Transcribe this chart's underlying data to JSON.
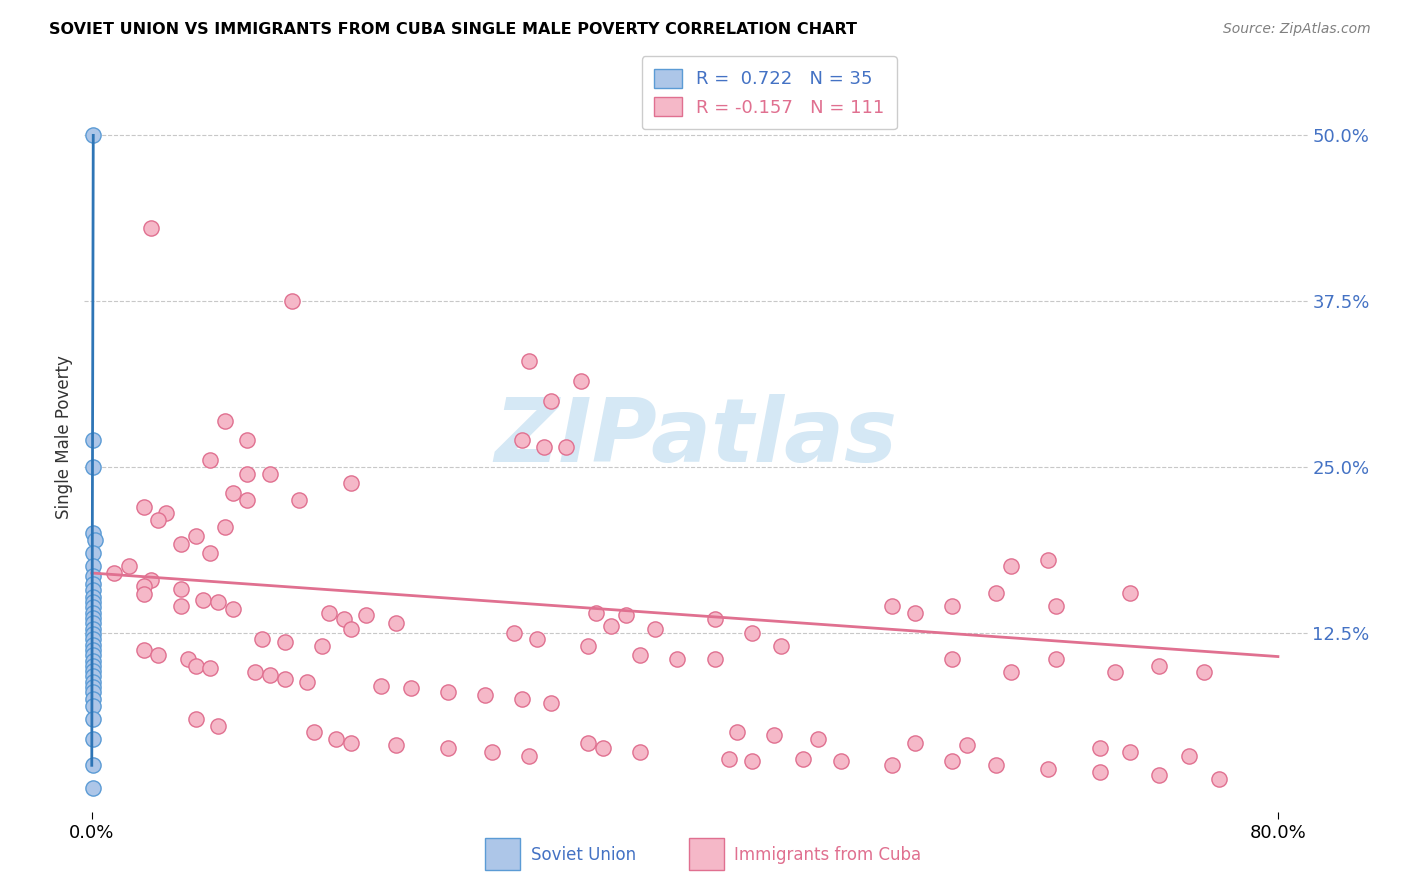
{
  "title": "SOVIET UNION VS IMMIGRANTS FROM CUBA SINGLE MALE POVERTY CORRELATION CHART",
  "source": "Source: ZipAtlas.com",
  "ylabel": "Single Male Poverty",
  "ytick_labels": [
    "50.0%",
    "37.5%",
    "25.0%",
    "12.5%"
  ],
  "ytick_values": [
    0.5,
    0.375,
    0.25,
    0.125
  ],
  "xlim": [
    -0.005,
    0.82
  ],
  "ylim": [
    -0.01,
    0.555
  ],
  "soviet_color": "#adc6e8",
  "soviet_edge_color": "#5b9bd5",
  "cuba_color": "#f5b8c8",
  "cuba_edge_color": "#e07090",
  "soviet_line_color": "#2e75b6",
  "cuba_line_color": "#e07090",
  "background_color": "#ffffff",
  "grid_color": "#c8c8c8",
  "watermark_color": "#d5e8f5",
  "title_color": "#000000",
  "source_color": "#808080",
  "right_tick_color": "#4472c4",
  "legend_text_color_1": "#4472c4",
  "legend_text_color_2": "#e07090",
  "soviet_points": [
    [
      0.001,
      0.5
    ],
    [
      0.001,
      0.27
    ],
    [
      0.001,
      0.25
    ],
    [
      0.001,
      0.2
    ],
    [
      0.002,
      0.195
    ],
    [
      0.001,
      0.185
    ],
    [
      0.001,
      0.175
    ],
    [
      0.001,
      0.168
    ],
    [
      0.001,
      0.162
    ],
    [
      0.001,
      0.157
    ],
    [
      0.001,
      0.152
    ],
    [
      0.001,
      0.148
    ],
    [
      0.001,
      0.144
    ],
    [
      0.001,
      0.14
    ],
    [
      0.001,
      0.136
    ],
    [
      0.001,
      0.132
    ],
    [
      0.001,
      0.128
    ],
    [
      0.001,
      0.124
    ],
    [
      0.001,
      0.12
    ],
    [
      0.001,
      0.116
    ],
    [
      0.001,
      0.112
    ],
    [
      0.001,
      0.108
    ],
    [
      0.001,
      0.104
    ],
    [
      0.001,
      0.1
    ],
    [
      0.001,
      0.096
    ],
    [
      0.001,
      0.092
    ],
    [
      0.001,
      0.088
    ],
    [
      0.001,
      0.084
    ],
    [
      0.001,
      0.08
    ],
    [
      0.001,
      0.075
    ],
    [
      0.001,
      0.07
    ],
    [
      0.001,
      0.06
    ],
    [
      0.001,
      0.045
    ],
    [
      0.001,
      0.025
    ],
    [
      0.001,
      0.008
    ]
  ],
  "cuba_points": [
    [
      0.04,
      0.43
    ],
    [
      0.135,
      0.375
    ],
    [
      0.295,
      0.33
    ],
    [
      0.33,
      0.315
    ],
    [
      0.31,
      0.3
    ],
    [
      0.09,
      0.285
    ],
    [
      0.105,
      0.27
    ],
    [
      0.29,
      0.27
    ],
    [
      0.32,
      0.265
    ],
    [
      0.305,
      0.265
    ],
    [
      0.08,
      0.255
    ],
    [
      0.105,
      0.245
    ],
    [
      0.12,
      0.245
    ],
    [
      0.175,
      0.238
    ],
    [
      0.095,
      0.23
    ],
    [
      0.105,
      0.225
    ],
    [
      0.14,
      0.225
    ],
    [
      0.035,
      0.22
    ],
    [
      0.05,
      0.215
    ],
    [
      0.045,
      0.21
    ],
    [
      0.09,
      0.205
    ],
    [
      0.07,
      0.198
    ],
    [
      0.06,
      0.192
    ],
    [
      0.08,
      0.185
    ],
    [
      0.025,
      0.175
    ],
    [
      0.015,
      0.17
    ],
    [
      0.04,
      0.165
    ],
    [
      0.035,
      0.16
    ],
    [
      0.06,
      0.158
    ],
    [
      0.035,
      0.154
    ],
    [
      0.075,
      0.15
    ],
    [
      0.085,
      0.148
    ],
    [
      0.06,
      0.145
    ],
    [
      0.095,
      0.143
    ],
    [
      0.16,
      0.14
    ],
    [
      0.185,
      0.138
    ],
    [
      0.17,
      0.135
    ],
    [
      0.205,
      0.132
    ],
    [
      0.175,
      0.128
    ],
    [
      0.285,
      0.125
    ],
    [
      0.3,
      0.12
    ],
    [
      0.34,
      0.14
    ],
    [
      0.36,
      0.138
    ],
    [
      0.35,
      0.13
    ],
    [
      0.38,
      0.128
    ],
    [
      0.42,
      0.135
    ],
    [
      0.445,
      0.125
    ],
    [
      0.115,
      0.12
    ],
    [
      0.13,
      0.118
    ],
    [
      0.155,
      0.115
    ],
    [
      0.035,
      0.112
    ],
    [
      0.045,
      0.108
    ],
    [
      0.065,
      0.105
    ],
    [
      0.07,
      0.1
    ],
    [
      0.08,
      0.098
    ],
    [
      0.11,
      0.095
    ],
    [
      0.12,
      0.093
    ],
    [
      0.13,
      0.09
    ],
    [
      0.145,
      0.088
    ],
    [
      0.195,
      0.085
    ],
    [
      0.215,
      0.083
    ],
    [
      0.24,
      0.08
    ],
    [
      0.265,
      0.078
    ],
    [
      0.29,
      0.075
    ],
    [
      0.31,
      0.072
    ],
    [
      0.335,
      0.115
    ],
    [
      0.37,
      0.108
    ],
    [
      0.395,
      0.105
    ],
    [
      0.42,
      0.105
    ],
    [
      0.465,
      0.115
    ],
    [
      0.54,
      0.145
    ],
    [
      0.555,
      0.14
    ],
    [
      0.58,
      0.145
    ],
    [
      0.61,
      0.155
    ],
    [
      0.62,
      0.175
    ],
    [
      0.645,
      0.18
    ],
    [
      0.65,
      0.145
    ],
    [
      0.7,
      0.155
    ],
    [
      0.58,
      0.105
    ],
    [
      0.62,
      0.095
    ],
    [
      0.65,
      0.105
    ],
    [
      0.69,
      0.095
    ],
    [
      0.72,
      0.1
    ],
    [
      0.75,
      0.095
    ],
    [
      0.07,
      0.06
    ],
    [
      0.085,
      0.055
    ],
    [
      0.15,
      0.05
    ],
    [
      0.165,
      0.045
    ],
    [
      0.175,
      0.042
    ],
    [
      0.205,
      0.04
    ],
    [
      0.24,
      0.038
    ],
    [
      0.27,
      0.035
    ],
    [
      0.295,
      0.032
    ],
    [
      0.335,
      0.042
    ],
    [
      0.345,
      0.038
    ],
    [
      0.37,
      0.035
    ],
    [
      0.43,
      0.03
    ],
    [
      0.445,
      0.028
    ],
    [
      0.48,
      0.03
    ],
    [
      0.505,
      0.028
    ],
    [
      0.54,
      0.025
    ],
    [
      0.58,
      0.028
    ],
    [
      0.61,
      0.025
    ],
    [
      0.645,
      0.022
    ],
    [
      0.68,
      0.02
    ],
    [
      0.72,
      0.018
    ],
    [
      0.76,
      0.015
    ],
    [
      0.435,
      0.05
    ],
    [
      0.46,
      0.048
    ],
    [
      0.49,
      0.045
    ],
    [
      0.555,
      0.042
    ],
    [
      0.59,
      0.04
    ],
    [
      0.68,
      0.038
    ],
    [
      0.7,
      0.035
    ],
    [
      0.74,
      0.032
    ]
  ],
  "cuba_line": [
    [
      0.0,
      0.17
    ],
    [
      0.8,
      0.107
    ]
  ],
  "soviet_line": [
    [
      0.0,
      0.025
    ],
    [
      0.001,
      0.5
    ]
  ]
}
